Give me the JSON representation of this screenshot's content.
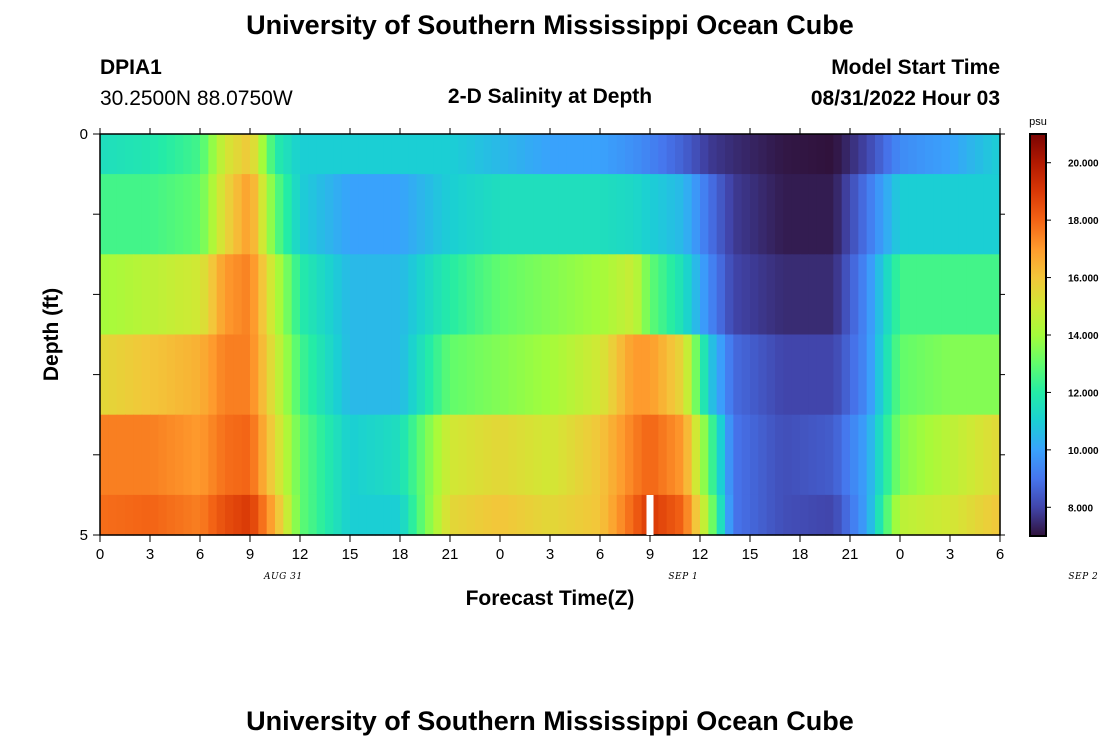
{
  "header": {
    "title": "University of Southern Mississippi Ocean Cube",
    "station": "DPIA1",
    "coords": "30.2500N  88.0750W",
    "plot_title": "2-D Salinity at Depth",
    "model_start_label": "Model Start Time",
    "model_start_value": "08/31/2022 Hour 03"
  },
  "footer": {
    "title": "University of Southern Mississippi Ocean Cube"
  },
  "chart_data": {
    "type": "heatmap",
    "title": "2-D Salinity at Depth",
    "xlabel": "Forecast Time(Z)",
    "ylabel": "Depth (ft)",
    "x_tick_labels": [
      "0",
      "3",
      "6",
      "9",
      "12",
      "15",
      "18",
      "21",
      "0",
      "3",
      "6",
      "9",
      "12",
      "15",
      "18",
      "21",
      "0",
      "3",
      "6"
    ],
    "date_labels": [
      {
        "label": "AUG 31",
        "at_hour": 11
      },
      {
        "label": "SEP 1",
        "at_hour": 35
      },
      {
        "label": "SEP 2",
        "at_hour": 59
      }
    ],
    "y_tick_labels": [
      "0",
      "5"
    ],
    "ylim": [
      0,
      5
    ],
    "x_range_hours": [
      0,
      54
    ],
    "colorbar": {
      "unit": "psu",
      "range": [
        7.0,
        21.0
      ],
      "tick_labels": [
        "8.000",
        "10.000",
        "12.000",
        "14.000",
        "16.000",
        "18.000",
        "20.000"
      ],
      "tick_values": [
        8,
        10,
        12,
        14,
        16,
        18,
        20
      ],
      "colormap": [
        "#30123b",
        "#4145ab",
        "#4675ed",
        "#39a2fc",
        "#1bcfd4",
        "#24eca6",
        "#61fc6c",
        "#a4fc3b",
        "#d1e834",
        "#f3c63a",
        "#fe9b2d",
        "#f36315",
        "#d93806",
        "#b11901",
        "#7a0403"
      ]
    },
    "current_time_marker_hour": 33,
    "depth_layers": [
      "0-0.5 ft",
      "0.5-1.5 ft",
      "1.5-2.5 ft",
      "2.5-3.5 ft",
      "3.5-4.5 ft",
      "4.5-5 ft"
    ],
    "times_hours": [
      0,
      3,
      6,
      7.5,
      9,
      10.5,
      12,
      15,
      18,
      21,
      24,
      27,
      30,
      32,
      33,
      35,
      36.5,
      38,
      41,
      44,
      46,
      48,
      51,
      54
    ],
    "salinity_psu": [
      [
        11.5,
        11.8,
        12.5,
        15.0,
        16.0,
        12.0,
        11.0,
        11.0,
        11.0,
        11.0,
        10.5,
        10.0,
        10.0,
        9.6,
        9.3,
        8.6,
        7.8,
        7.5,
        7.1,
        7.0,
        8.0,
        9.5,
        10.0,
        11.0
      ],
      [
        12.5,
        12.5,
        13.0,
        15.5,
        17.0,
        13.0,
        11.0,
        10.0,
        10.0,
        11.0,
        11.5,
        11.5,
        11.5,
        11.3,
        11.0,
        10.5,
        9.0,
        7.8,
        7.2,
        7.2,
        9.0,
        11.0,
        11.0,
        11.0
      ],
      [
        14.0,
        14.5,
        15.0,
        17.0,
        17.5,
        14.5,
        12.0,
        10.5,
        10.5,
        12.0,
        13.0,
        13.5,
        14.0,
        14.8,
        13.0,
        11.5,
        9.5,
        8.0,
        7.5,
        7.5,
        9.5,
        12.5,
        12.5,
        12.5
      ],
      [
        15.5,
        16.0,
        16.5,
        17.5,
        17.5,
        15.0,
        12.5,
        10.5,
        10.5,
        13.0,
        13.5,
        14.0,
        15.0,
        17.0,
        17.0,
        15.5,
        11.0,
        8.8,
        8.0,
        8.0,
        9.5,
        13.0,
        13.5,
        13.5
      ],
      [
        17.5,
        17.5,
        17.0,
        17.8,
        18.0,
        15.5,
        13.0,
        11.0,
        11.5,
        15.0,
        15.5,
        15.0,
        16.0,
        17.5,
        18.0,
        17.0,
        13.0,
        9.0,
        8.2,
        8.5,
        10.0,
        13.5,
        14.5,
        15.5
      ],
      [
        17.8,
        18.0,
        17.5,
        18.5,
        19.0,
        16.5,
        13.0,
        11.0,
        11.0,
        15.5,
        16.0,
        15.5,
        16.0,
        18.0,
        19.0,
        18.0,
        14.0,
        9.0,
        8.2,
        8.0,
        10.0,
        14.5,
        15.0,
        16.0
      ]
    ]
  }
}
